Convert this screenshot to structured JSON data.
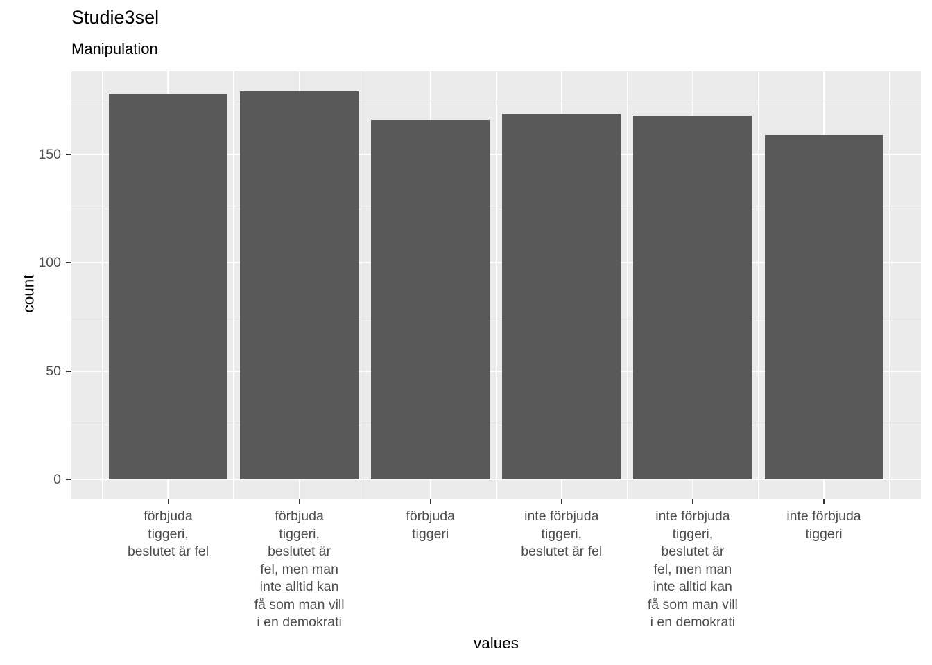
{
  "chart_data": {
    "type": "bar",
    "title": "Studie3sel",
    "subtitle": "Manipulation",
    "xlabel": "values",
    "ylabel": "count",
    "categories": [
      [
        "förbjuda",
        "tiggeri,",
        "beslutet är fel"
      ],
      [
        "förbjuda",
        "tiggeri,",
        "beslutet är",
        "fel, men man",
        "inte alltid kan",
        "få som man vill",
        "i en demokrati"
      ],
      [
        "förbjuda",
        "tiggeri"
      ],
      [
        "inte förbjuda",
        "tiggeri,",
        "beslutet är fel"
      ],
      [
        "inte förbjuda",
        "tiggeri,",
        "beslutet är",
        "fel, men man",
        "inte alltid kan",
        "få som man vill",
        "i en demokrati"
      ],
      [
        "inte förbjuda",
        "tiggeri"
      ]
    ],
    "values": [
      178,
      179,
      166,
      169,
      168,
      159
    ],
    "yticks": [
      0,
      50,
      100,
      150
    ],
    "minor_yticks": [
      25,
      75,
      125,
      175
    ],
    "ylim": [
      0,
      188
    ],
    "grid": "on",
    "legend": "none",
    "colors": {
      "bar": "#595959",
      "panel_bg": "#EBEBEB",
      "grid": "#FFFFFF",
      "axis_text": "#4D4D4D",
      "tick_mark": "#333333",
      "title_text": "#000000"
    }
  }
}
